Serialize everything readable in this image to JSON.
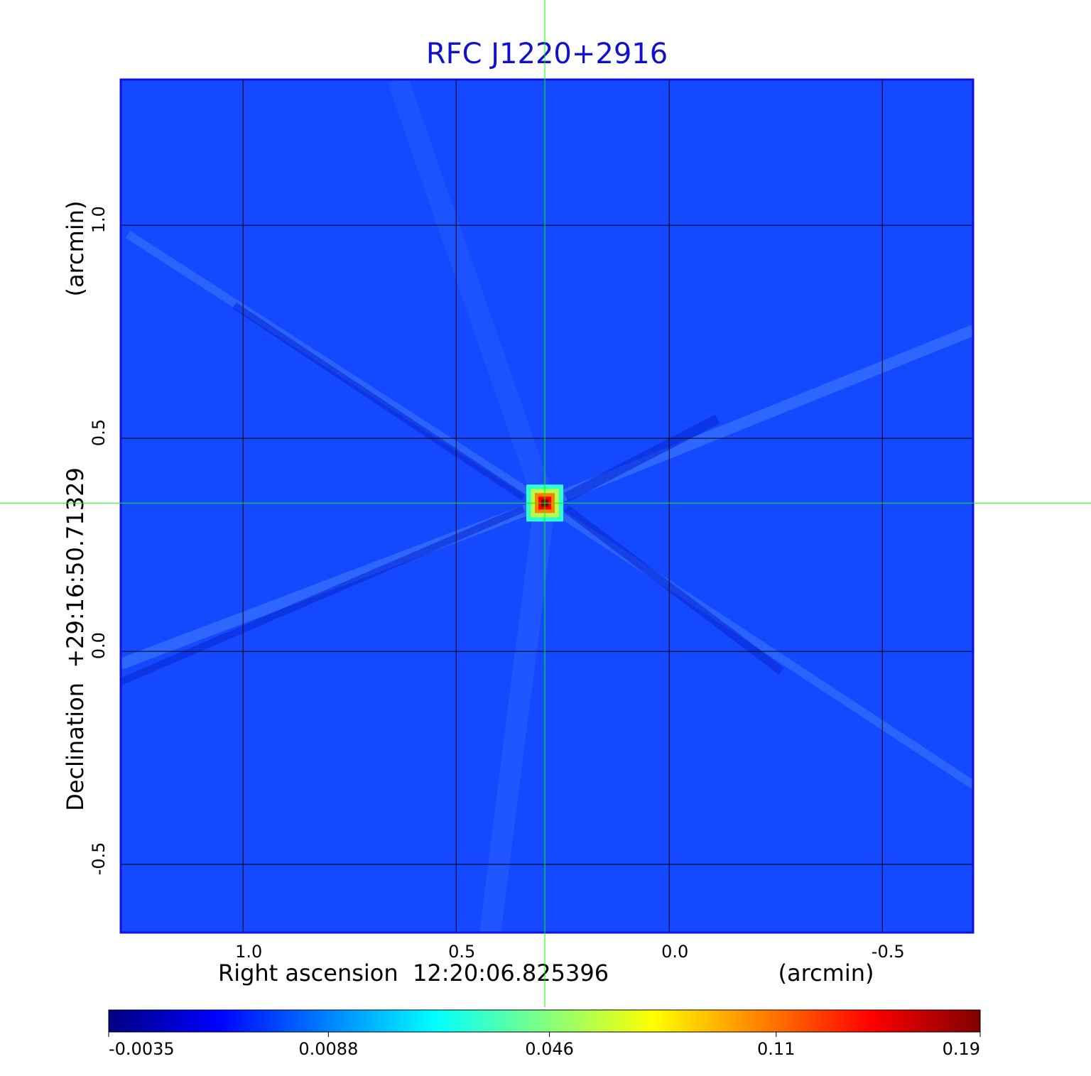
{
  "chart_data": {
    "type": "image",
    "title": "RFC J1220+2916",
    "x_label": "Right ascension  12:20:06.825396",
    "x_unit": "(arcmin)",
    "y_label": "Declination  +29:16:50.71329",
    "y_unit": "(arcmin)",
    "xlim": [
      1.287,
      -0.713
    ],
    "ylim": [
      -0.66,
      1.342
    ],
    "xticks": [
      {
        "value": 1,
        "label": "1.0"
      },
      0.5,
      {
        "value": 0,
        "label": "0.0"
      },
      -0.5
    ],
    "yticks": [
      {
        "value": -0.5,
        "label": "-0.5"
      },
      {
        "value": 0,
        "label": "0.0"
      },
      0.5,
      {
        "value": 1,
        "label": "1.0"
      }
    ],
    "grid": true,
    "crosshair": {
      "x": 0.292,
      "y": 0.348,
      "color": "#00ff00"
    },
    "colormap": "jet",
    "colorbar_scale": "sqrt",
    "clim": [
      -0.0035,
      0.19
    ],
    "colorbar_ticks": [
      -0.0035,
      0.0088,
      0.046,
      0.11,
      0.19
    ]
  }
}
